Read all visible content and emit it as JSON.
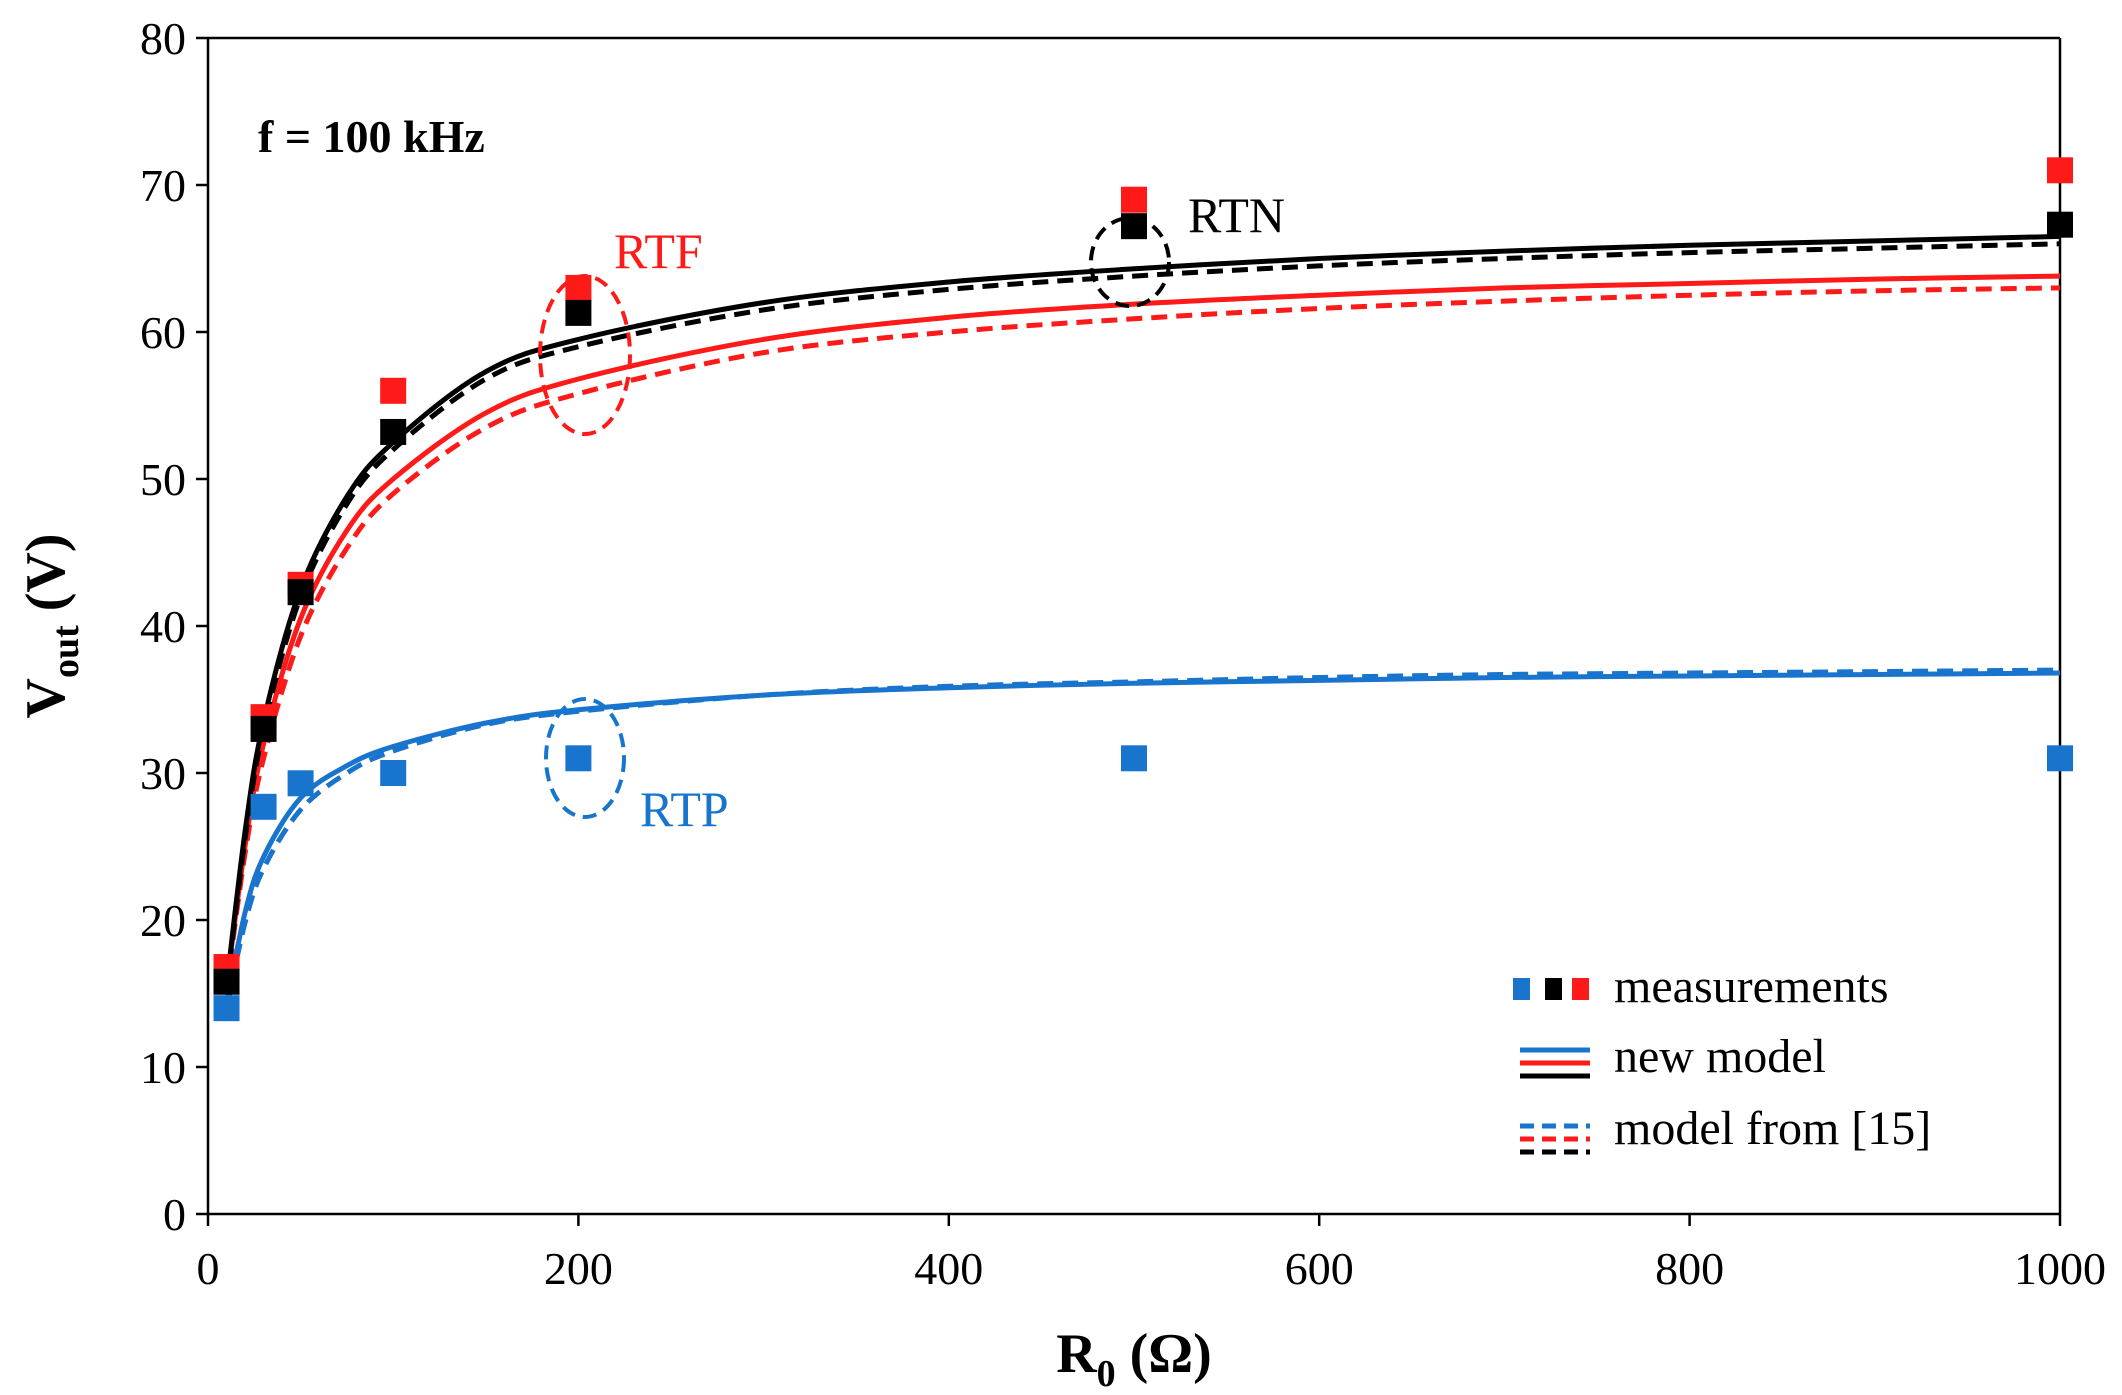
{
  "chart_data": {
    "type": "line",
    "title": "",
    "xlabel_main": "R",
    "xlabel_sub": "0",
    "xlabel_unit": "(Ω)",
    "ylabel_main": "V",
    "ylabel_sub": "out",
    "ylabel_unit": "(V)",
    "xlim": [
      0,
      1000
    ],
    "ylim": [
      0,
      80
    ],
    "xticks": [
      0,
      200,
      400,
      600,
      800,
      1000
    ],
    "yticks": [
      0,
      10,
      20,
      30,
      40,
      50,
      60,
      70,
      80
    ],
    "grid": false,
    "annotations": {
      "frequency": "f = 100 kHz",
      "rtf": "RTF",
      "rtn": "RTN",
      "rtp": "RTP"
    },
    "colors": {
      "RTP": "#1874cd",
      "RTF": "#ff1a1a",
      "RTN": "#000000"
    },
    "measurements": [
      {
        "name": "RTP",
        "x": [
          10,
          30,
          50,
          100,
          200,
          500,
          1000
        ],
        "y": [
          14,
          27.7,
          29.3,
          30,
          31,
          31,
          31
        ]
      },
      {
        "name": "RTF",
        "x": [
          10,
          30,
          50,
          100,
          200,
          500,
          1000
        ],
        "y": [
          16.8,
          33.8,
          42.8,
          56,
          63,
          69,
          71
        ]
      },
      {
        "name": "RTN",
        "x": [
          10,
          30,
          50,
          100,
          200,
          500,
          1000
        ],
        "y": [
          15.8,
          33,
          42.3,
          53.2,
          61.3,
          67.2,
          67.3
        ]
      }
    ],
    "series": [
      {
        "name": "RTP new model",
        "style": "solid",
        "x": [
          10,
          20,
          30,
          50,
          75,
          100,
          150,
          200,
          300,
          400,
          500,
          600,
          700,
          800,
          900,
          1000
        ],
        "y": [
          14.3,
          20.5,
          24.3,
          28.3,
          30.5,
          31.8,
          33.4,
          34.3,
          35.3,
          35.8,
          36.1,
          36.3,
          36.5,
          36.6,
          36.7,
          36.8
        ]
      },
      {
        "name": "RTP model from [15]",
        "style": "dashed",
        "x": [
          10,
          20,
          30,
          50,
          75,
          100,
          150,
          200,
          300,
          400,
          500,
          600,
          700,
          800,
          900,
          1000
        ],
        "y": [
          14.0,
          19.8,
          23.5,
          27.5,
          30.0,
          31.5,
          33.3,
          34.2,
          35.3,
          35.9,
          36.2,
          36.5,
          36.7,
          36.8,
          36.9,
          37.0
        ]
      },
      {
        "name": "RTF new model",
        "style": "solid",
        "x": [
          10,
          20,
          30,
          50,
          75,
          100,
          150,
          200,
          300,
          400,
          500,
          600,
          700,
          800,
          900,
          1000
        ],
        "y": [
          15.5,
          25.0,
          32.0,
          40.5,
          46.5,
          50.0,
          54.5,
          56.8,
          59.5,
          61.0,
          61.9,
          62.5,
          63.0,
          63.3,
          63.6,
          63.8
        ]
      },
      {
        "name": "RTF model from [15]",
        "style": "dashed",
        "x": [
          10,
          20,
          30,
          50,
          75,
          100,
          150,
          200,
          300,
          400,
          500,
          600,
          700,
          800,
          900,
          1000
        ],
        "y": [
          15.3,
          24.5,
          31.0,
          39.3,
          45.3,
          49.0,
          53.5,
          55.8,
          58.6,
          60.0,
          60.9,
          61.6,
          62.1,
          62.5,
          62.8,
          63.0
        ]
      },
      {
        "name": "RTN new model",
        "style": "solid",
        "x": [
          10,
          20,
          30,
          50,
          75,
          100,
          150,
          200,
          300,
          400,
          500,
          600,
          700,
          800,
          900,
          1000
        ],
        "y": [
          15.5,
          26.0,
          33.5,
          42.5,
          48.8,
          52.5,
          57.3,
          59.5,
          62.0,
          63.4,
          64.3,
          65.0,
          65.5,
          65.9,
          66.2,
          66.5
        ]
      },
      {
        "name": "RTN model from [15]",
        "style": "dashed",
        "x": [
          10,
          20,
          30,
          50,
          75,
          100,
          150,
          200,
          300,
          400,
          500,
          600,
          700,
          800,
          900,
          1000
        ],
        "y": [
          15.3,
          25.5,
          33.0,
          42.0,
          48.3,
          52.0,
          56.8,
          59.0,
          61.5,
          62.9,
          63.8,
          64.5,
          65.0,
          65.4,
          65.7,
          66.0
        ]
      }
    ],
    "legend": {
      "placement": "bottom-right",
      "items": [
        "measurements",
        "new model",
        "model from [15]"
      ]
    }
  }
}
